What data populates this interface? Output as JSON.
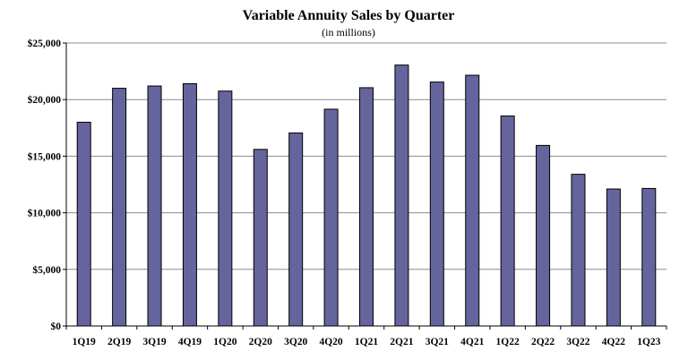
{
  "chart_data": {
    "type": "bar",
    "title": "Variable Annuity Sales by Quarter",
    "subtitle": "(in millions)",
    "xlabel": "",
    "ylabel": "",
    "categories": [
      "1Q19",
      "2Q19",
      "3Q19",
      "4Q19",
      "1Q20",
      "2Q20",
      "3Q20",
      "4Q20",
      "1Q21",
      "2Q21",
      "3Q21",
      "4Q21",
      "1Q22",
      "2Q22",
      "3Q22",
      "4Q22",
      "1Q23"
    ],
    "values": [
      18000,
      21000,
      21200,
      21400,
      20750,
      15600,
      17050,
      19150,
      21050,
      23050,
      21550,
      22150,
      18550,
      15950,
      13400,
      12100,
      12150
    ],
    "ylim": [
      0,
      25000
    ],
    "yticks": [
      0,
      5000,
      10000,
      15000,
      20000,
      25000
    ],
    "ytick_labels": [
      "$0",
      "$5,000",
      "$10,000",
      "$15,000",
      "$20,000",
      "$25,000"
    ],
    "grid": true,
    "legend": "none",
    "bar_color": "#65649c"
  }
}
